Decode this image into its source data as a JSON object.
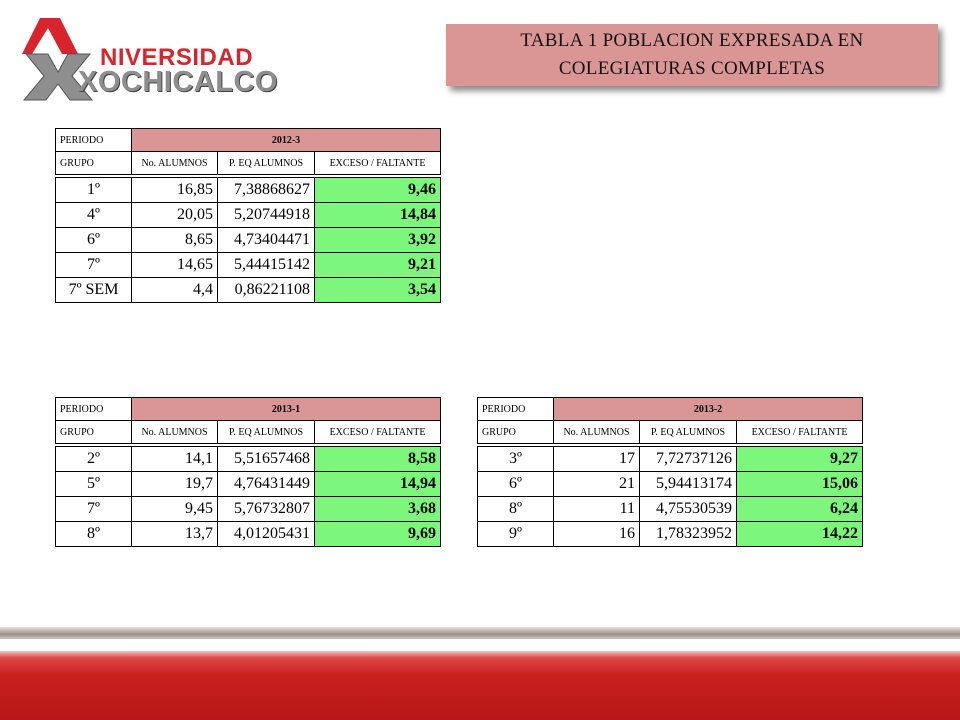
{
  "logo": {
    "line1": "NIVERSIDAD",
    "line2": "XOCHICALCO"
  },
  "title": {
    "line1": "TABLA 1 POBLACION EXPRESADA EN",
    "line2": "COLEGIATURAS COMPLETAS"
  },
  "column_labels": {
    "periodo": "PERIODO",
    "grupo": "GRUPO",
    "alumnos": "No. ALUMNOS",
    "equivalente": "P. EQ ALUMNOS",
    "exceso": "EXCESO / FALTANTE"
  },
  "tables": [
    {
      "periodo": "2012-3",
      "rows": [
        {
          "grupo": "1º",
          "alumnos": "16,85",
          "equivalente": "7,38868627",
          "exceso": "9,46"
        },
        {
          "grupo": "4º",
          "alumnos": "20,05",
          "equivalente": "5,20744918",
          "exceso": "14,84"
        },
        {
          "grupo": "6º",
          "alumnos": "8,65",
          "equivalente": "4,73404471",
          "exceso": "3,92"
        },
        {
          "grupo": "7º",
          "alumnos": "14,65",
          "equivalente": "5,44415142",
          "exceso": "9,21"
        },
        {
          "grupo": "7º SEM",
          "alumnos": "4,4",
          "equivalente": "0,86221108",
          "exceso": "3,54"
        }
      ]
    },
    {
      "periodo": "2013-1",
      "rows": [
        {
          "grupo": "2º",
          "alumnos": "14,1",
          "equivalente": "5,51657468",
          "exceso": "8,58"
        },
        {
          "grupo": "5º",
          "alumnos": "19,7",
          "equivalente": "4,76431449",
          "exceso": "14,94"
        },
        {
          "grupo": "7º",
          "alumnos": "9,45",
          "equivalente": "5,76732807",
          "exceso": "3,68"
        },
        {
          "grupo": "8º",
          "alumnos": "13,7",
          "equivalente": "4,01205431",
          "exceso": "9,69"
        }
      ]
    },
    {
      "periodo": "2013-2",
      "rows": [
        {
          "grupo": "3º",
          "alumnos": "17",
          "equivalente": "7,72737126",
          "exceso": "9,27"
        },
        {
          "grupo": "6º",
          "alumnos": "21",
          "equivalente": "5,94413174",
          "exceso": "15,06"
        },
        {
          "grupo": "8º",
          "alumnos": "11",
          "equivalente": "4,75530539",
          "exceso": "6,24"
        },
        {
          "grupo": "9º",
          "alumnos": "16",
          "equivalente": "1,78323952",
          "exceso": "14,22"
        }
      ]
    }
  ]
}
